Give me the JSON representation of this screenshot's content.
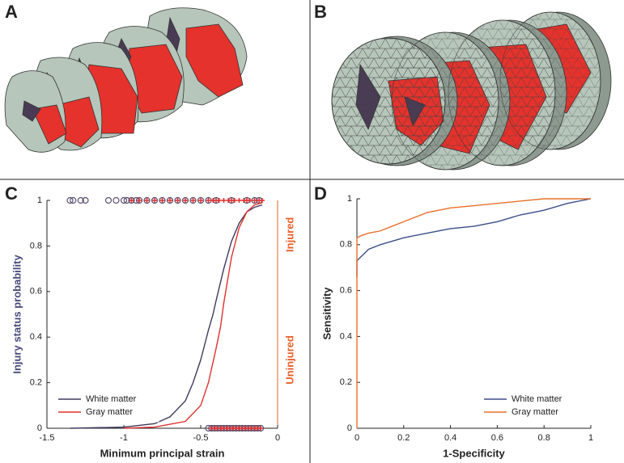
{
  "panel_labels": [
    "A",
    "B",
    "C",
    "D"
  ],
  "chart_data": [
    {
      "type": "line",
      "x_label": "Minimum principal strain",
      "y_label": "Injury status probability",
      "y_label_color": "#4a4a7a",
      "y2_labels": [
        "Injured",
        "Uninjured"
      ],
      "y2_label_color": "#e8602a",
      "xlim": [
        -1.5,
        0
      ],
      "xticks": [
        -1.5,
        -1,
        -0.5,
        0
      ],
      "ylim": [
        0,
        1
      ],
      "yticks": [
        0,
        0.2,
        0.4,
        0.6,
        0.8,
        1
      ],
      "grid": false,
      "legend": "lower left",
      "series": [
        {
          "name": "White matter",
          "color": "#3f3a5e",
          "x": [
            -1.35,
            -1.0,
            -0.8,
            -0.7,
            -0.6,
            -0.55,
            -0.5,
            -0.45,
            -0.42,
            -0.4,
            -0.35,
            -0.3,
            -0.25,
            -0.2,
            -0.15,
            -0.1
          ],
          "values": [
            0,
            0.005,
            0.02,
            0.05,
            0.12,
            0.2,
            0.3,
            0.43,
            0.5,
            0.56,
            0.7,
            0.82,
            0.9,
            0.95,
            0.97,
            0.98
          ]
        },
        {
          "name": "Gray matter",
          "color": "#e03030",
          "x": [
            -1.0,
            -0.8,
            -0.6,
            -0.5,
            -0.45,
            -0.4,
            -0.37,
            -0.35,
            -0.3,
            -0.25,
            -0.2,
            -0.15,
            -0.1
          ],
          "values": [
            0,
            0.005,
            0.03,
            0.1,
            0.2,
            0.35,
            0.45,
            0.55,
            0.75,
            0.88,
            0.95,
            0.98,
            0.99
          ]
        }
      ],
      "scatter_series": [
        {
          "color": "#5a5070",
          "marker": "circle",
          "x": [
            -1.35,
            -1.33,
            -1.28,
            -1.25,
            -1.1,
            -1.05,
            -1.0,
            -0.98,
            -0.95,
            -0.92,
            -0.9,
            -0.85,
            -0.8,
            -0.75,
            -0.7,
            -0.65,
            -0.6,
            -0.55,
            -0.5,
            -0.45,
            -0.4,
            -0.3,
            -0.2,
            -0.15,
            -0.12,
            -0.45,
            -0.43,
            -0.41,
            -0.39,
            -0.37,
            -0.35,
            -0.33,
            -0.31,
            -0.29,
            -0.27,
            -0.25,
            -0.23,
            -0.21,
            -0.19,
            -0.17,
            -0.15,
            -0.13,
            -0.11
          ],
          "values": [
            1,
            1,
            1,
            1,
            1,
            1,
            1,
            1,
            1,
            1,
            1,
            1,
            1,
            1,
            1,
            1,
            1,
            1,
            1,
            1,
            1,
            1,
            1,
            1,
            1,
            0,
            0,
            0,
            0,
            0,
            0,
            0,
            0,
            0,
            0,
            0,
            0,
            0,
            0,
            0,
            0,
            0,
            0
          ]
        },
        {
          "color": "#e03030",
          "marker": "plus",
          "x": [
            -0.95,
            -0.9,
            -0.85,
            -0.8,
            -0.75,
            -0.7,
            -0.65,
            -0.6,
            -0.55,
            -0.5,
            -0.45,
            -0.42,
            -0.4,
            -0.38,
            -0.35,
            -0.32,
            -0.3,
            -0.28,
            -0.25,
            -0.22,
            -0.2,
            -0.18,
            -0.15,
            -0.12,
            -0.1,
            -0.43,
            -0.41,
            -0.39,
            -0.37,
            -0.35,
            -0.33,
            -0.31,
            -0.29,
            -0.27,
            -0.25,
            -0.23,
            -0.21,
            -0.19,
            -0.17,
            -0.15,
            -0.13,
            -0.11
          ],
          "values": [
            1,
            1,
            1,
            1,
            1,
            1,
            1,
            1,
            1,
            1,
            1,
            1,
            1,
            1,
            1,
            1,
            1,
            1,
            1,
            1,
            1,
            1,
            1,
            1,
            1,
            0,
            0,
            0,
            0,
            0,
            0,
            0,
            0,
            0,
            0,
            0,
            0,
            0,
            0,
            0,
            0,
            0
          ]
        }
      ]
    },
    {
      "type": "line",
      "x_label": "1-Specificity",
      "y_label": "Sensitivity",
      "xlim": [
        0,
        1
      ],
      "xticks": [
        0,
        0.2,
        0.4,
        0.6,
        0.8,
        1
      ],
      "ylim": [
        0,
        1
      ],
      "yticks": [
        0,
        0.2,
        0.4,
        0.6,
        0.8,
        1
      ],
      "grid": false,
      "legend": "lower right",
      "series": [
        {
          "name": "White matter",
          "color": "#3a4f8a",
          "x": [
            0,
            0,
            0.02,
            0.05,
            0.1,
            0.2,
            0.3,
            0.4,
            0.5,
            0.6,
            0.7,
            0.8,
            0.9,
            1
          ],
          "values": [
            0.66,
            0.73,
            0.75,
            0.78,
            0.8,
            0.83,
            0.85,
            0.87,
            0.88,
            0.9,
            0.93,
            0.95,
            0.98,
            1
          ]
        },
        {
          "name": "Gray matter",
          "color": "#e8702a",
          "x": [
            0,
            0,
            0.02,
            0.05,
            0.1,
            0.15,
            0.2,
            0.25,
            0.3,
            0.4,
            0.5,
            0.6,
            0.7,
            0.8,
            1
          ],
          "values": [
            0,
            0.83,
            0.84,
            0.85,
            0.86,
            0.88,
            0.9,
            0.92,
            0.94,
            0.96,
            0.97,
            0.98,
            0.99,
            1,
            1
          ]
        }
      ]
    }
  ]
}
